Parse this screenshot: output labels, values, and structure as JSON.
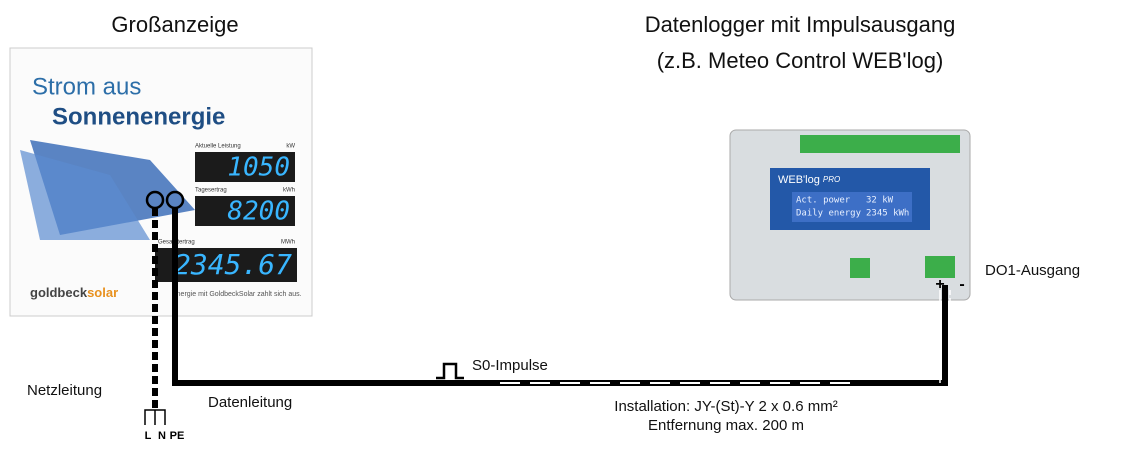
{
  "display": {
    "heading": "Großanzeige",
    "line1": "Strom aus",
    "line2": "Sonnenenergie",
    "rows": [
      {
        "label": "Aktuelle Leistung",
        "unit": "kW",
        "value": "1050"
      },
      {
        "label": "Tagesertrag",
        "unit": "kWh",
        "value": "8200"
      },
      {
        "label": "Gesamtertrag",
        "unit": "MWh",
        "value": "2345.67"
      }
    ],
    "brand": "goldbeck",
    "brand_accent": "solar",
    "slogan": "Energie mit GoldbeckSolar zahlt sich aus."
  },
  "logger": {
    "heading": [
      "Datenlogger mit Impulsausgang",
      "(z.B. Meteo Control WEB'log)"
    ],
    "brand": "WEB'log",
    "edition": "PRO",
    "screen": [
      [
        "Act. power",
        "32 kW"
      ],
      [
        "Daily energy",
        "2345 kWh"
      ]
    ],
    "plus": "+",
    "minus": "-",
    "output": "DO1-Ausgang"
  },
  "wiring": {
    "pulses": "S0-Impulse",
    "mains": "Netzleitung",
    "data": "Datenleitung",
    "cable": "Installation: JY-(St)-Y 2 x 0.6 mm²",
    "distance": "Entfernung max. 200 m",
    "conductors": [
      "L",
      "N",
      "PE"
    ]
  }
}
